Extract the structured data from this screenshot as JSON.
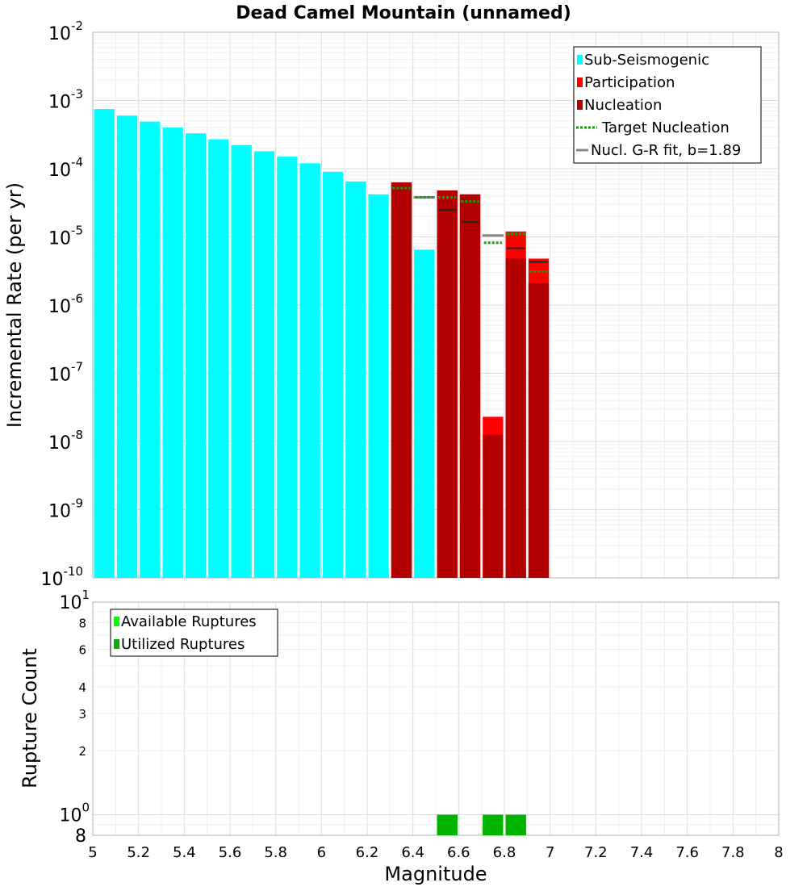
{
  "chart_data": [
    {
      "type": "bar",
      "title": "Dead Camel Mountain (unnamed)",
      "xlabel": "",
      "ylabel": "Incremental Rate (per yr)",
      "yscale": "log",
      "xlim": [
        5,
        8
      ],
      "ylim": [
        1e-10,
        0.01
      ],
      "grid": true,
      "bin_width": 0.1,
      "y_ticks": [
        {
          "base": "10",
          "exp": "-10",
          "value": 1e-10
        },
        {
          "base": "10",
          "exp": "-9",
          "value": 1e-09
        },
        {
          "base": "10",
          "exp": "-8",
          "value": 1e-08
        },
        {
          "base": "10",
          "exp": "-7",
          "value": 1e-07
        },
        {
          "base": "10",
          "exp": "-6",
          "value": 1e-06
        },
        {
          "base": "10",
          "exp": "-5",
          "value": 1e-05
        },
        {
          "base": "10",
          "exp": "-4",
          "value": 0.0001
        },
        {
          "base": "10",
          "exp": "-3",
          "value": 0.001
        },
        {
          "base": "10",
          "exp": "-2",
          "value": 0.01
        }
      ],
      "series": [
        {
          "name": "Sub-Seismogenic",
          "color": "#00ffff",
          "x": [
            5.05,
            5.15,
            5.25,
            5.35,
            5.45,
            5.55,
            5.65,
            5.75,
            5.85,
            5.95,
            6.05,
            6.15,
            6.25,
            6.45
          ],
          "values": [
            0.00075,
            0.0006,
            0.00049,
            0.0004,
            0.00033,
            0.00027,
            0.00022,
            0.00018,
            0.00015,
            0.00012,
            9e-05,
            6.5e-05,
            4.2e-05,
            6.5e-06
          ]
        },
        {
          "name": "Participation",
          "color": "#ff0000",
          "x": [
            6.35,
            6.55,
            6.65,
            6.75,
            6.85,
            6.95
          ],
          "values": [
            6.3e-05,
            4.8e-05,
            4.2e-05,
            2.3e-08,
            1.2e-05,
            4.8e-06
          ]
        },
        {
          "name": "Nucleation",
          "color": "#b30000",
          "x": [
            6.35,
            6.55,
            6.65,
            6.75,
            6.85,
            6.95
          ],
          "values": [
            6.3e-05,
            4.8e-05,
            4.2e-05,
            1.25e-08,
            4.8e-06,
            2.1e-06
          ]
        },
        {
          "name": "Target Nucleation",
          "color": "#00aa00",
          "style": "dotted",
          "x": [
            6.35,
            6.45,
            6.55,
            6.65,
            6.75,
            6.85,
            6.95
          ],
          "values": [
            5.2e-05,
            3.8e-05,
            3.8e-05,
            3.3e-05,
            8.2e-06,
            1.1e-05,
            3.1e-06
          ]
        },
        {
          "name": "Nucl. G-R fit, b=1.89",
          "color": "#888888",
          "style": "solid",
          "x": [
            6.45,
            6.75
          ],
          "values": [
            3.8e-05,
            1.05e-05
          ]
        }
      ],
      "black_markers": {
        "x": [
          6.55,
          6.65,
          6.85,
          6.95
        ],
        "values": [
          2.5e-05,
          1.65e-05,
          6.8e-06,
          4.3e-06
        ]
      },
      "legend": {
        "location": "top-right",
        "items": [
          {
            "label": "Sub-Seismogenic",
            "color": "#00ffff",
            "kind": "box"
          },
          {
            "label": "Participation",
            "color": "#ff0000",
            "kind": "box"
          },
          {
            "label": "Nucleation",
            "color": "#b30000",
            "kind": "box"
          },
          {
            "label": "Target Nucleation",
            "color": "#00aa00",
            "kind": "dotted"
          },
          {
            "label": "Nucl. G-R fit, b=1.89",
            "color": "#888888",
            "kind": "line"
          }
        ]
      }
    },
    {
      "type": "bar",
      "title": "",
      "xlabel": "Magnitude",
      "ylabel": "Rupture Count",
      "yscale": "log",
      "xlim": [
        5,
        8
      ],
      "ylim": [
        0.8,
        10
      ],
      "grid": true,
      "bin_width": 0.1,
      "y_decade_ticks": [
        {
          "base": "10",
          "exp": "0",
          "value": 1
        },
        {
          "base": "10",
          "exp": "1",
          "value": 10
        }
      ],
      "y_minor_labels": [
        {
          "label": "8",
          "value": 0.8
        },
        {
          "label": "2",
          "value": 2
        },
        {
          "label": "3",
          "value": 3
        },
        {
          "label": "4",
          "value": 4
        },
        {
          "label": "6",
          "value": 6
        },
        {
          "label": "8",
          "value": 8
        }
      ],
      "x_ticks": [
        "5",
        "5.2",
        "5.4",
        "5.6",
        "5.8",
        "6",
        "6.2",
        "6.4",
        "6.6",
        "6.8",
        "7",
        "7.2",
        "7.4",
        "7.6",
        "7.8",
        "8"
      ],
      "series": [
        {
          "name": "Available Ruptures",
          "color": "#00ff00",
          "x": [
            6.55,
            6.75,
            6.85
          ],
          "values": [
            1,
            1,
            1
          ]
        },
        {
          "name": "Utilized Ruptures",
          "color": "#00b300",
          "x": [
            6.55,
            6.75,
            6.85
          ],
          "values": [
            1,
            1,
            1
          ]
        }
      ],
      "legend": {
        "location": "top-left",
        "items": [
          {
            "label": "Available Ruptures",
            "color": "#00ff00",
            "kind": "box"
          },
          {
            "label": "Utilized Ruptures",
            "color": "#00b300",
            "kind": "box"
          }
        ]
      }
    }
  ]
}
